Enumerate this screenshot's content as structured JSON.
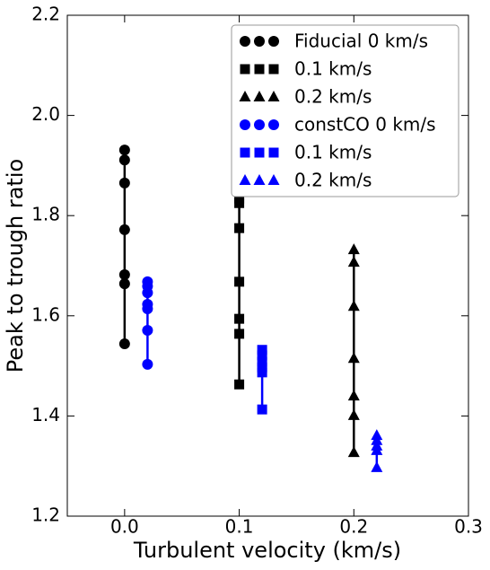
{
  "chart_data": {
    "type": "scatter",
    "x_label": "Turbulent velocity (km/s)",
    "y_label": "Peak to trough ratio",
    "xlim": [
      -0.05,
      0.3
    ],
    "ylim": [
      1.2,
      2.2
    ],
    "xticks": [
      {
        "value": 0,
        "label": "0.0"
      },
      0.1,
      0.2,
      0.3
    ],
    "yticks": [
      1.2,
      1.4,
      1.6,
      1.8,
      {
        "value": 2,
        "label": "2.0"
      },
      2.2
    ],
    "legend": "upper right",
    "series": [
      {
        "name": "Fiducial 0 km/s",
        "color": "#000000",
        "marker": "circle",
        "x": [
          0,
          0,
          0,
          0,
          0,
          0,
          0
        ],
        "values": [
          1.931,
          1.911,
          1.865,
          1.772,
          1.682,
          1.664,
          1.544
        ]
      },
      {
        "name": "0.1 km/s",
        "color": "#000000",
        "marker": "square",
        "x": [
          0.1,
          0.1,
          0.1,
          0.1,
          0.1,
          0.1,
          0.1
        ],
        "values": [
          1.834,
          1.825,
          1.775,
          1.668,
          1.594,
          1.564,
          1.463
        ]
      },
      {
        "name": "0.2 km/s",
        "color": "#000000",
        "marker": "triangle",
        "x": [
          0.2,
          0.2,
          0.2,
          0.2,
          0.2,
          0.2,
          0.2
        ],
        "values": [
          1.732,
          1.707,
          1.619,
          1.515,
          1.44,
          1.401,
          1.327
        ]
      },
      {
        "name": "constCO 0 km/s",
        "color": "#0000ff",
        "marker": "circle",
        "x": [
          0.02,
          0.02,
          0.02,
          0.02,
          0.02,
          0.02,
          0.02
        ],
        "values": [
          1.668,
          1.659,
          1.646,
          1.623,
          1.614,
          1.571,
          1.503
        ]
      },
      {
        "name": "0.1 km/s",
        "color": "#0000ff",
        "marker": "square",
        "x": [
          0.12,
          0.12,
          0.12,
          0.12,
          0.12,
          0.12
        ],
        "values": [
          1.532,
          1.521,
          1.508,
          1.497,
          1.487,
          1.413
        ]
      },
      {
        "name": "0.2 km/s",
        "color": "#0000ff",
        "marker": "triangle",
        "x": [
          0.22,
          0.22,
          0.22,
          0.22,
          0.22
        ],
        "values": [
          1.361,
          1.351,
          1.34,
          1.331,
          1.297
        ]
      }
    ]
  }
}
